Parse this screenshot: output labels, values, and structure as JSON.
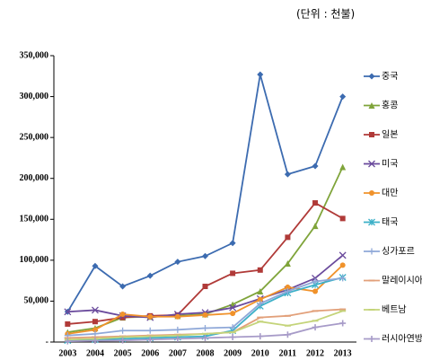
{
  "chart_data": {
    "type": "line",
    "subtitle": "(단위 : 천불)",
    "categories": [
      "2003",
      "2004",
      "2005",
      "2006",
      "2007",
      "2008",
      "2009",
      "2010",
      "2011",
      "2012",
      "2013"
    ],
    "ylim": [
      0,
      350000
    ],
    "yticks": [
      {
        "value": 0,
        "label": "-"
      },
      {
        "value": 50000,
        "label": "50,000"
      },
      {
        "value": 100000,
        "label": "100,000"
      },
      {
        "value": 150000,
        "label": "150,000"
      },
      {
        "value": 200000,
        "label": "200,000"
      },
      {
        "value": 250000,
        "label": "250,000"
      },
      {
        "value": 300000,
        "label": "300,000"
      },
      {
        "value": 350000,
        "label": "350,000"
      }
    ],
    "series": [
      {
        "name": "중국",
        "color": "#3c6bb0",
        "values": [
          37000,
          93000,
          68000,
          81000,
          98000,
          105000,
          121000,
          327000,
          205000,
          215000,
          300000
        ]
      },
      {
        "name": "홍콩",
        "color": "#7fa43a",
        "values": [
          12000,
          17000,
          30000,
          31000,
          32000,
          34000,
          46000,
          62000,
          96000,
          142000,
          214000
        ]
      },
      {
        "name": "일본",
        "color": "#b03a38",
        "values": [
          22000,
          25000,
          30000,
          32000,
          33000,
          68000,
          84000,
          88000,
          128000,
          170000,
          151000
        ]
      },
      {
        "name": "미국",
        "color": "#6a4a9c",
        "values": [
          37000,
          39000,
          32000,
          30000,
          34000,
          36000,
          42000,
          53000,
          64000,
          78000,
          106000
        ]
      },
      {
        "name": "대만",
        "color": "#f0922b",
        "values": [
          10000,
          15000,
          34000,
          31000,
          31000,
          33000,
          35000,
          52000,
          67000,
          62000,
          94000
        ]
      },
      {
        "name": "태국",
        "color": "#3db0c8",
        "values": [
          2000,
          3000,
          4000,
          5000,
          6000,
          7000,
          14000,
          44000,
          60000,
          70000,
          79000
        ]
      },
      {
        "name": "싱가포르",
        "color": "#8fa8d8",
        "values": [
          8000,
          10000,
          14000,
          14000,
          15000,
          17000,
          18000,
          47000,
          62000,
          74000,
          78000
        ]
      },
      {
        "name": "말레이시아",
        "color": "#e2a07a",
        "values": [
          5000,
          6000,
          7000,
          8000,
          9000,
          10000,
          12000,
          30000,
          32000,
          38000,
          40000
        ]
      },
      {
        "name": "베트남",
        "color": "#c4d47a",
        "values": [
          3000,
          4000,
          6000,
          7000,
          8000,
          10000,
          12000,
          25000,
          20000,
          26000,
          38000
        ]
      },
      {
        "name": "러시아연방",
        "color": "#a79bc8",
        "values": [
          1000,
          1500,
          2000,
          3000,
          4000,
          5000,
          6000,
          7000,
          9000,
          18000,
          23000
        ]
      }
    ]
  }
}
